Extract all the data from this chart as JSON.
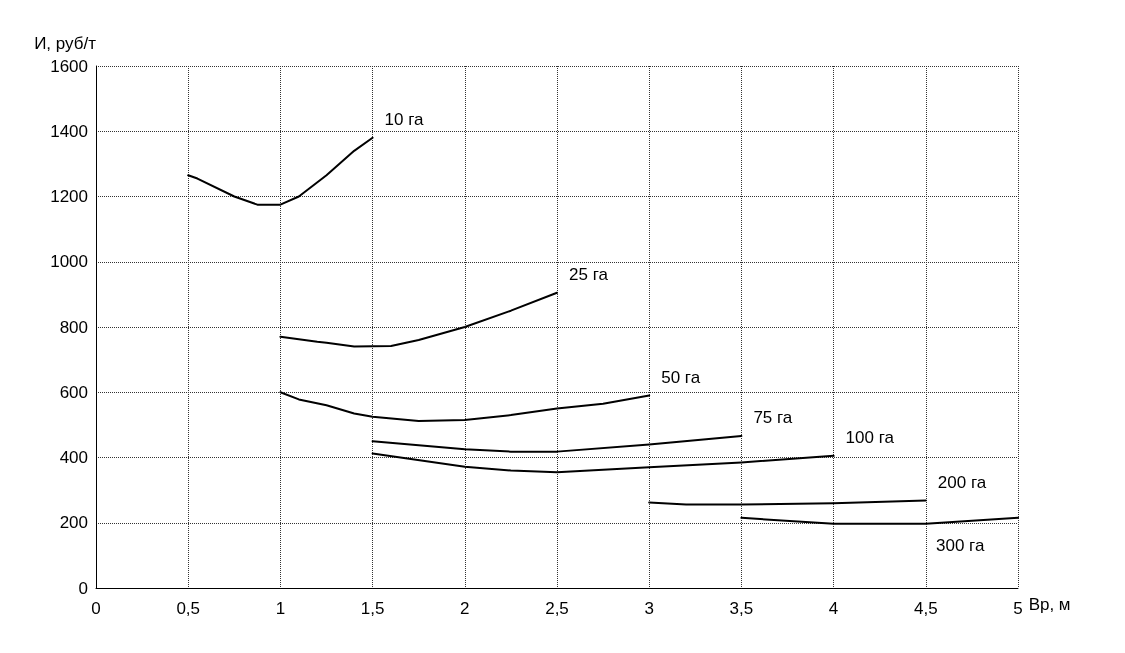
{
  "chart_data": {
    "type": "line",
    "xlabel": "Вр, м",
    "ylabel": "И, руб/т",
    "xlim": [
      0,
      5
    ],
    "ylim": [
      0,
      1600
    ],
    "xticks": [
      0,
      {
        "value": 0.5,
        "label": "0,5"
      },
      1,
      {
        "value": 1.5,
        "label": "1,5"
      },
      2,
      {
        "value": 2.5,
        "label": "2,5"
      },
      3,
      {
        "value": 3.5,
        "label": "3,5"
      },
      4,
      {
        "value": 4.5,
        "label": "4,5"
      },
      5
    ],
    "yticks": [
      0,
      200,
      400,
      600,
      800,
      1000,
      1200,
      1400,
      1600
    ],
    "grid": true,
    "legend": false,
    "marker": "none",
    "line_style": "solid",
    "series": [
      {
        "name": "10 га",
        "color": "#000000",
        "x": [
          0.5,
          0.55,
          0.75,
          0.875,
          1,
          1.1,
          1.25,
          1.4,
          1.5
        ],
        "values": [
          1265,
          1255,
          1200,
          1175,
          1175,
          1200,
          1265,
          1340,
          1380
        ]
      },
      {
        "name": "25 га",
        "color": "#000000",
        "x": [
          1,
          1.2,
          1.25,
          1.4,
          1.6,
          1.75,
          2,
          2.25,
          2.5
        ],
        "values": [
          770,
          755,
          752,
          740,
          742,
          760,
          800,
          850,
          905
        ]
      },
      {
        "name": "50 га",
        "color": "#000000",
        "x": [
          1,
          1.1,
          1.25,
          1.4,
          1.5,
          1.75,
          2,
          2.25,
          2.5,
          2.75,
          3
        ],
        "values": [
          600,
          578,
          560,
          535,
          525,
          512,
          515,
          530,
          550,
          565,
          590
        ]
      },
      {
        "name": "75 га",
        "color": "#000000",
        "x": [
          1.5,
          2,
          2.25,
          2.5,
          3,
          3.5
        ],
        "values": [
          450,
          425,
          418,
          418,
          440,
          466
        ]
      },
      {
        "name": "100 га",
        "color": "#000000",
        "x": [
          1.5,
          2,
          2.25,
          2.5,
          3,
          3.5,
          4
        ],
        "values": [
          412,
          372,
          360,
          355,
          370,
          385,
          405
        ]
      },
      {
        "name": "200 га",
        "color": "#000000",
        "x": [
          3,
          3.2,
          3.5,
          4,
          4.5
        ],
        "values": [
          262,
          256,
          256,
          260,
          268
        ]
      },
      {
        "name": "300 га",
        "color": "#000000",
        "x": [
          3.5,
          4,
          4.5,
          5
        ],
        "values": [
          215,
          197,
          197,
          215
        ]
      }
    ]
  }
}
